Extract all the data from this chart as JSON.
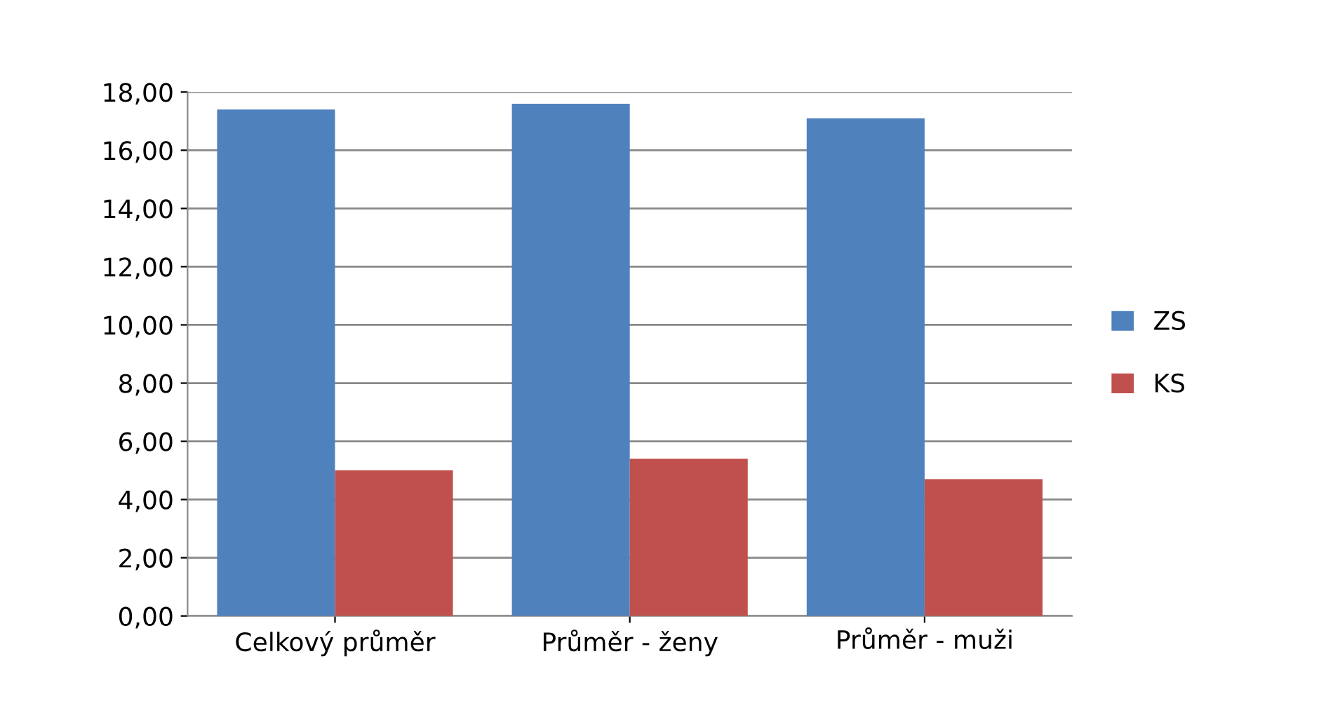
{
  "chart_data": {
    "type": "bar",
    "categories": [
      "Celkový průměr",
      "Průměr - ženy",
      "Průměr - muži"
    ],
    "series": [
      {
        "name": "ZS",
        "color": "#4f81bd",
        "values": [
          17.4,
          17.6,
          17.1
        ]
      },
      {
        "name": "KS",
        "color": "#c0504d",
        "values": [
          5.0,
          5.4,
          4.7
        ]
      }
    ],
    "ylim": [
      0,
      18
    ],
    "yticks": [
      {
        "value": 0,
        "label": "0,00"
      },
      {
        "value": 2,
        "label": "2,00"
      },
      {
        "value": 4,
        "label": "4,00"
      },
      {
        "value": 6,
        "label": "6,00"
      },
      {
        "value": 8,
        "label": "8,00"
      },
      {
        "value": 10,
        "label": "10,00"
      },
      {
        "value": 12,
        "label": "12,00"
      },
      {
        "value": 14,
        "label": "14,00"
      },
      {
        "value": 16,
        "label": "16,00"
      },
      {
        "value": 18,
        "label": "18,00"
      }
    ],
    "grid": "y",
    "legend": "right"
  }
}
